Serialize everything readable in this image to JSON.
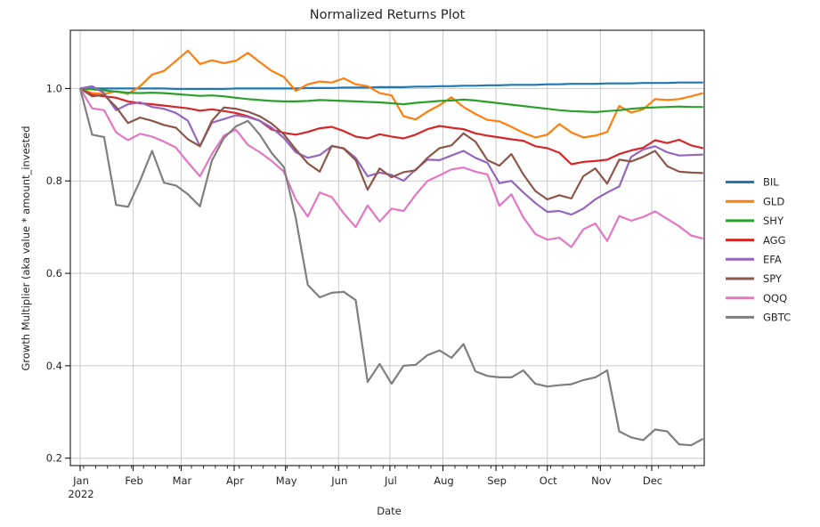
{
  "figure": {
    "background": "#ffffff",
    "grid_color": "#c9c9c9",
    "spine_color": "#000000",
    "tick_color": "#000000",
    "text_color": "#262626"
  },
  "chart_data": {
    "type": "line",
    "title": "Normalized Returns Plot",
    "xlabel": "Date",
    "ylabel": "Growth Multiplier (aka value * amount_invested",
    "x_unit": "weeks from Jan 2022, one point per week",
    "x_year_label": "2022",
    "x_tick_labels": [
      "Jan",
      "Feb",
      "Mar",
      "Apr",
      "May",
      "Jun",
      "Jul",
      "Aug",
      "Sep",
      "Oct",
      "Nov",
      "Dec"
    ],
    "x_tick_weeks": [
      0,
      4.429,
      8.429,
      12.857,
      17.143,
      21.571,
      25.857,
      30.286,
      34.714,
      39.0,
      43.429,
      47.714
    ],
    "y_ticks": [
      0.2,
      0.4,
      0.6,
      0.8,
      1.0
    ],
    "y_tick_labels": [
      "0.2",
      "0.4",
      "0.6",
      "0.8",
      "1.0"
    ],
    "ylim": [
      0.184,
      1.126
    ],
    "xlim_weeks": [
      -0.82,
      52.1
    ],
    "grid": true,
    "legend_position": "center right",
    "series": [
      {
        "name": "BIL",
        "color": "#1f77b4",
        "values": [
          1.0,
          1.0,
          1.0,
          1.0,
          1.0,
          1.0,
          1.0,
          1.0,
          0.999,
          0.999,
          0.999,
          0.999,
          0.999,
          1.0,
          1.0,
          1.0,
          1.0,
          1.0,
          1.0,
          1.001,
          1.001,
          1.001,
          1.002,
          1.002,
          1.002,
          1.003,
          1.003,
          1.003,
          1.004,
          1.004,
          1.005,
          1.005,
          1.006,
          1.006,
          1.007,
          1.007,
          1.008,
          1.008,
          1.008,
          1.009,
          1.009,
          1.01,
          1.01,
          1.01,
          1.011,
          1.011,
          1.011,
          1.012,
          1.012,
          1.012,
          1.013,
          1.013,
          1.013
        ]
      },
      {
        "name": "GLD",
        "color": "#ff7f0e",
        "values": [
          1.0,
          0.99,
          0.988,
          0.994,
          0.988,
          1.005,
          1.03,
          1.038,
          1.06,
          1.082,
          1.053,
          1.061,
          1.055,
          1.06,
          1.077,
          1.057,
          1.038,
          1.025,
          0.995,
          1.009,
          1.015,
          1.013,
          1.022,
          1.009,
          1.005,
          0.99,
          0.985,
          0.94,
          0.933,
          0.95,
          0.964,
          0.981,
          0.96,
          0.945,
          0.932,
          0.929,
          0.917,
          0.904,
          0.894,
          0.9,
          0.923,
          0.905,
          0.894,
          0.898,
          0.906,
          0.962,
          0.948,
          0.955,
          0.977,
          0.975,
          0.977,
          0.983,
          0.99
        ]
      },
      {
        "name": "SHY",
        "color": "#2ca02c",
        "values": [
          1.0,
          0.998,
          0.996,
          0.993,
          0.991,
          0.99,
          0.991,
          0.99,
          0.988,
          0.986,
          0.984,
          0.985,
          0.983,
          0.98,
          0.977,
          0.975,
          0.973,
          0.972,
          0.972,
          0.973,
          0.975,
          0.974,
          0.973,
          0.972,
          0.971,
          0.97,
          0.968,
          0.966,
          0.969,
          0.971,
          0.973,
          0.974,
          0.976,
          0.974,
          0.971,
          0.968,
          0.965,
          0.962,
          0.959,
          0.956,
          0.953,
          0.951,
          0.95,
          0.949,
          0.951,
          0.953,
          0.956,
          0.958,
          0.959,
          0.96,
          0.961,
          0.96,
          0.96
        ]
      },
      {
        "name": "AGG",
        "color": "#d62728",
        "values": [
          1.0,
          0.986,
          0.983,
          0.98,
          0.972,
          0.968,
          0.966,
          0.963,
          0.96,
          0.957,
          0.952,
          0.955,
          0.951,
          0.947,
          0.94,
          0.93,
          0.911,
          0.904,
          0.9,
          0.906,
          0.914,
          0.917,
          0.908,
          0.896,
          0.892,
          0.901,
          0.896,
          0.892,
          0.9,
          0.912,
          0.919,
          0.915,
          0.912,
          0.903,
          0.898,
          0.894,
          0.89,
          0.887,
          0.875,
          0.871,
          0.861,
          0.836,
          0.841,
          0.843,
          0.846,
          0.858,
          0.866,
          0.872,
          0.888,
          0.882,
          0.889,
          0.877,
          0.871
        ]
      },
      {
        "name": "EFA",
        "color": "#9467bd",
        "values": [
          1.0,
          1.005,
          0.99,
          0.953,
          0.966,
          0.97,
          0.96,
          0.956,
          0.947,
          0.93,
          0.875,
          0.926,
          0.934,
          0.942,
          0.938,
          0.93,
          0.915,
          0.893,
          0.862,
          0.85,
          0.856,
          0.875,
          0.871,
          0.85,
          0.81,
          0.818,
          0.813,
          0.8,
          0.825,
          0.846,
          0.845,
          0.855,
          0.865,
          0.85,
          0.839,
          0.795,
          0.8,
          0.775,
          0.752,
          0.733,
          0.735,
          0.727,
          0.74,
          0.76,
          0.775,
          0.788,
          0.852,
          0.868,
          0.875,
          0.862,
          0.855,
          0.856,
          0.857
        ]
      },
      {
        "name": "SPY",
        "color": "#8c564b",
        "values": [
          1.0,
          0.983,
          0.986,
          0.96,
          0.925,
          0.937,
          0.93,
          0.921,
          0.915,
          0.89,
          0.875,
          0.93,
          0.959,
          0.956,
          0.95,
          0.94,
          0.924,
          0.901,
          0.868,
          0.838,
          0.82,
          0.876,
          0.87,
          0.845,
          0.781,
          0.827,
          0.808,
          0.819,
          0.823,
          0.85,
          0.871,
          0.877,
          0.903,
          0.885,
          0.845,
          0.833,
          0.858,
          0.814,
          0.778,
          0.76,
          0.769,
          0.762,
          0.81,
          0.827,
          0.794,
          0.846,
          0.842,
          0.852,
          0.865,
          0.832,
          0.82,
          0.818,
          0.817
        ]
      },
      {
        "name": "QQQ",
        "color": "#e377c2",
        "values": [
          1.0,
          0.957,
          0.953,
          0.905,
          0.888,
          0.902,
          0.896,
          0.885,
          0.872,
          0.84,
          0.81,
          0.858,
          0.898,
          0.911,
          0.878,
          0.862,
          0.843,
          0.82,
          0.76,
          0.723,
          0.775,
          0.765,
          0.73,
          0.7,
          0.747,
          0.712,
          0.74,
          0.735,
          0.77,
          0.8,
          0.812,
          0.825,
          0.829,
          0.82,
          0.814,
          0.746,
          0.771,
          0.721,
          0.685,
          0.673,
          0.677,
          0.657,
          0.695,
          0.708,
          0.67,
          0.724,
          0.714,
          0.722,
          0.734,
          0.718,
          0.702,
          0.682,
          0.675
        ]
      },
      {
        "name": "GBTC",
        "color": "#7f7f7f",
        "values": [
          1.0,
          0.9,
          0.895,
          0.748,
          0.744,
          0.8,
          0.865,
          0.796,
          0.79,
          0.771,
          0.745,
          0.844,
          0.893,
          0.918,
          0.93,
          0.9,
          0.86,
          0.83,
          0.72,
          0.575,
          0.548,
          0.558,
          0.56,
          0.542,
          0.365,
          0.404,
          0.361,
          0.4,
          0.402,
          0.423,
          0.433,
          0.417,
          0.447,
          0.388,
          0.378,
          0.375,
          0.375,
          0.39,
          0.361,
          0.355,
          0.358,
          0.36,
          0.369,
          0.375,
          0.39,
          0.258,
          0.245,
          0.239,
          0.262,
          0.258,
          0.23,
          0.228,
          0.242
        ]
      }
    ]
  }
}
